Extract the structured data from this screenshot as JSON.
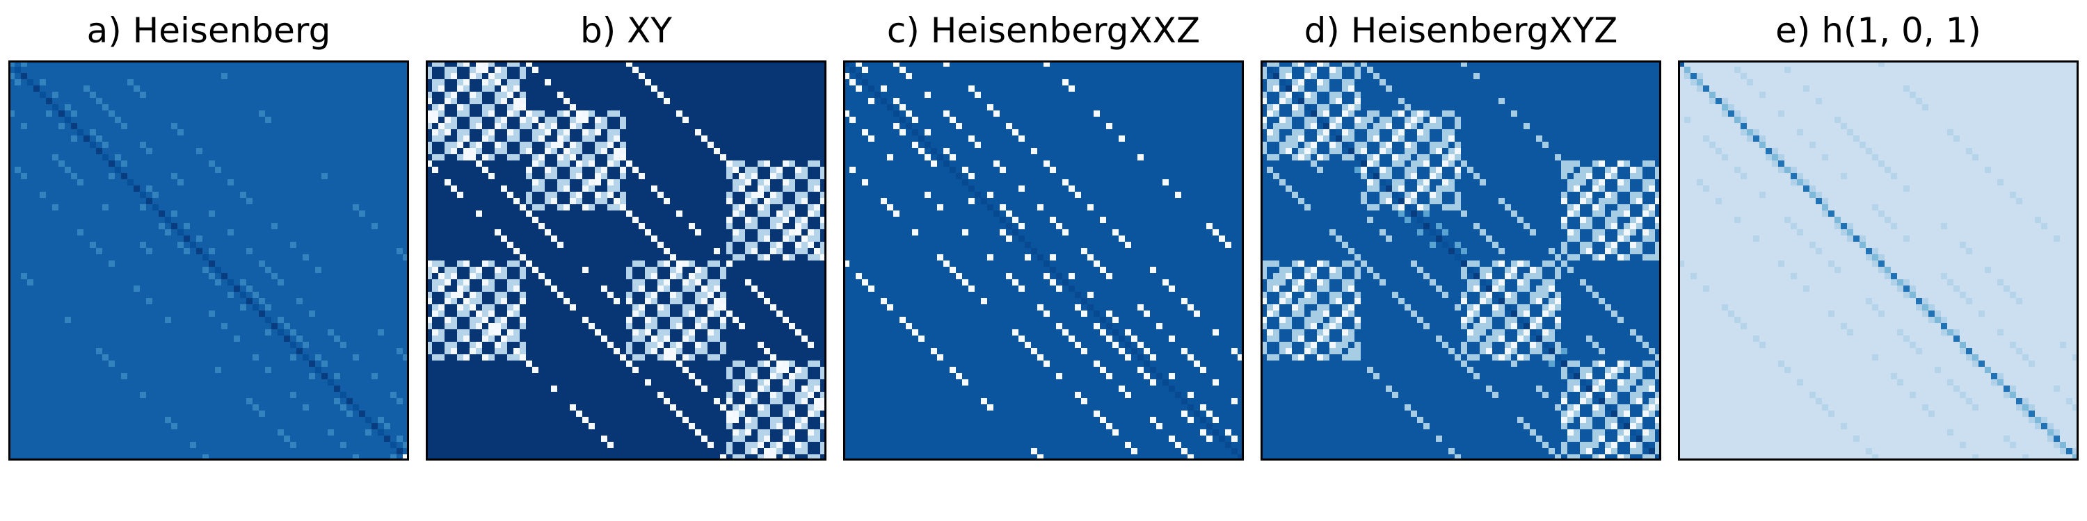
{
  "chart_data": [
    {
      "type": "heatmap",
      "title": "a) Heisenberg",
      "size": 64,
      "colormap": "Blues",
      "grid": false,
      "ticks": "none",
      "background_level": 0.82,
      "diagonal": {
        "levels": [
          0.95,
          0.88
        ],
        "period": 2
      },
      "off_diagonals": [
        {
          "offset": 2,
          "level": 0.68,
          "density": 0.45
        },
        {
          "offset": -2,
          "level": 0.68,
          "density": 0.45
        },
        {
          "offset": 8,
          "level": 0.68,
          "density": 0.4
        },
        {
          "offset": -8,
          "level": 0.68,
          "density": 0.4
        },
        {
          "offset": 16,
          "level": 0.68,
          "density": 0.4
        },
        {
          "offset": -16,
          "level": 0.68,
          "density": 0.4
        },
        {
          "offset": 32,
          "level": 0.68,
          "density": 0.4
        },
        {
          "offset": -32,
          "level": 0.68,
          "density": 0.4
        }
      ],
      "ring_blocks": [],
      "corner_values": {
        "top_left": 0.7,
        "bottom_right": 0.0
      }
    },
    {
      "type": "heatmap",
      "title": "b) XY",
      "size": 64,
      "colormap": "Blues",
      "grid": false,
      "ticks": "none",
      "background_level": 0.98,
      "diagonal": {
        "levels": [
          0.98,
          0.98
        ],
        "period": 2
      },
      "off_diagonals": [
        {
          "offset": 8,
          "level": 0.0,
          "density": 0.7
        },
        {
          "offset": -8,
          "level": 0.0,
          "density": 0.7
        },
        {
          "offset": 16,
          "level": 0.0,
          "density": 0.8
        },
        {
          "offset": -16,
          "level": 0.0,
          "density": 0.8
        },
        {
          "offset": 32,
          "level": 0.0,
          "density": 0.8
        },
        {
          "offset": -32,
          "level": 0.0,
          "density": 0.8
        }
      ],
      "ring_blocks": [
        {
          "row": 0,
          "col": 0,
          "size": 16,
          "level": 0.3
        },
        {
          "row": 8,
          "col": 16,
          "size": 16,
          "level": 0.3
        },
        {
          "row": 32,
          "col": 32,
          "size": 16,
          "level": 0.3
        },
        {
          "row": 48,
          "col": 48,
          "size": 16,
          "level": 0.3
        },
        {
          "row": 32,
          "col": 0,
          "size": 16,
          "level": 0.3
        },
        {
          "row": 16,
          "col": 48,
          "size": 16,
          "level": 0.3
        }
      ],
      "corner_values": {}
    },
    {
      "type": "heatmap",
      "title": "c) HeisenbergXXZ",
      "size": 64,
      "colormap": "Blues",
      "grid": false,
      "ticks": "none",
      "background_level": 0.86,
      "diagonal": {
        "levels": [
          0.9,
          0.9
        ],
        "period": 2
      },
      "off_diagonals": [
        {
          "offset": 2,
          "level": 0.0,
          "density": 0.5
        },
        {
          "offset": -2,
          "level": 0.0,
          "density": 0.5
        },
        {
          "offset": 8,
          "level": 0.0,
          "density": 0.55
        },
        {
          "offset": -8,
          "level": 0.0,
          "density": 0.55
        },
        {
          "offset": 16,
          "level": 0.0,
          "density": 0.6
        },
        {
          "offset": -16,
          "level": 0.0,
          "density": 0.6
        },
        {
          "offset": 32,
          "level": 0.0,
          "density": 0.6
        },
        {
          "offset": -32,
          "level": 0.0,
          "density": 0.6
        }
      ],
      "ring_blocks": [],
      "corner_values": {}
    },
    {
      "type": "heatmap",
      "title": "d) HeisenbergXYZ",
      "size": 64,
      "colormap": "Blues",
      "grid": false,
      "ticks": "none",
      "background_level": 0.85,
      "diagonal": {
        "levels": [
          0.95,
          0.88
        ],
        "period": 2
      },
      "off_diagonals": [
        {
          "offset": 2,
          "level": 0.55,
          "density": 0.45
        },
        {
          "offset": -2,
          "level": 0.55,
          "density": 0.45
        },
        {
          "offset": 8,
          "level": 0.35,
          "density": 0.6
        },
        {
          "offset": -8,
          "level": 0.35,
          "density": 0.6
        },
        {
          "offset": 16,
          "level": 0.35,
          "density": 0.7
        },
        {
          "offset": -16,
          "level": 0.35,
          "density": 0.7
        },
        {
          "offset": 32,
          "level": 0.35,
          "density": 0.7
        },
        {
          "offset": -32,
          "level": 0.35,
          "density": 0.7
        }
      ],
      "ring_blocks": [
        {
          "row": 0,
          "col": 0,
          "size": 16,
          "level": 0.35
        },
        {
          "row": 8,
          "col": 16,
          "size": 16,
          "level": 0.35
        },
        {
          "row": 32,
          "col": 32,
          "size": 16,
          "level": 0.35
        },
        {
          "row": 48,
          "col": 48,
          "size": 16,
          "level": 0.35
        },
        {
          "row": 32,
          "col": 0,
          "size": 16,
          "level": 0.35
        },
        {
          "row": 16,
          "col": 48,
          "size": 16,
          "level": 0.35
        }
      ],
      "corner_values": {}
    },
    {
      "type": "heatmap",
      "title": "e) h(1, 0, 1)",
      "size": 64,
      "colormap": "Blues",
      "grid": false,
      "ticks": "none",
      "background_level": 0.22,
      "diagonal": {
        "levels": [
          0.75,
          0.45
        ],
        "period": 2
      },
      "off_diagonals": [
        {
          "offset": 1,
          "level": 0.32,
          "density": 0.5
        },
        {
          "offset": -1,
          "level": 0.32,
          "density": 0.5
        },
        {
          "offset": 8,
          "level": 0.3,
          "density": 0.45
        },
        {
          "offset": -8,
          "level": 0.3,
          "density": 0.45
        },
        {
          "offset": 16,
          "level": 0.3,
          "density": 0.45
        },
        {
          "offset": -16,
          "level": 0.3,
          "density": 0.45
        },
        {
          "offset": 32,
          "level": 0.3,
          "density": 0.45
        },
        {
          "offset": -32,
          "level": 0.3,
          "density": 0.45
        }
      ],
      "ring_blocks": [],
      "corner_values": {
        "top_left": 0.85
      }
    }
  ]
}
